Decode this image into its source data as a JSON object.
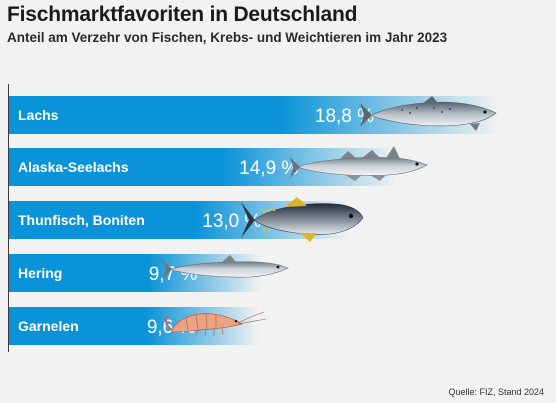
{
  "header": {
    "title": "Fischmarktfavoriten in Deutschland",
    "subtitle": "Anteil am Verzehr von Fischen, Krebs- und Weichtieren im Jahr 2023"
  },
  "source": "Quelle:  FIZ, Stand 2024",
  "colors": {
    "bar": "#0a93d8",
    "bar_fade": "#ffffff",
    "background": "#f2f2f2"
  },
  "chart_data": {
    "type": "bar",
    "orientation": "horizontal",
    "categories": [
      "Lachs",
      "Alaska-Seelachs",
      "Thunfisch, Boniten",
      "Hering",
      "Garnelen"
    ],
    "values": [
      18.8,
      14.9,
      13.0,
      9.7,
      9.6
    ],
    "value_labels": [
      "18,8 %",
      "14,9 %",
      "13,0 %",
      "9,7 %",
      "9,6 %"
    ],
    "icons": [
      "salmon-icon",
      "pollock-icon",
      "tuna-icon",
      "herring-icon",
      "shrimp-icon"
    ],
    "title": "Fischmarktfavoriten in Deutschland",
    "subtitle": "Anteil am Verzehr von Fischen, Krebs- und Weichtieren im Jahr 2023",
    "unit": "%",
    "xlim": [
      0,
      18.8
    ],
    "grid": false,
    "legend": "none"
  }
}
